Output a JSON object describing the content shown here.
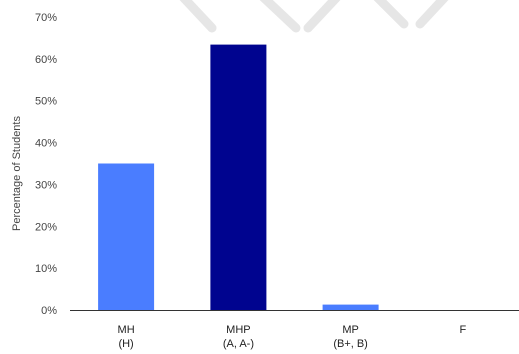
{
  "chart_data": {
    "type": "bar",
    "title": "",
    "xlabel": "",
    "ylabel": "Percentage of Students",
    "ylim": [
      0,
      70
    ],
    "yticks": [
      0,
      10,
      20,
      30,
      40,
      50,
      60,
      70
    ],
    "ytick_labels": [
      "0%",
      "10%",
      "20%",
      "30%",
      "40%",
      "50%",
      "60%",
      "70%"
    ],
    "categories": [
      [
        "MH",
        "(H)"
      ],
      [
        "MHP",
        "(A, A-)"
      ],
      [
        "MP",
        "(B+, B)"
      ],
      [
        "F",
        ""
      ]
    ],
    "values": [
      35,
      63.4,
      1.3,
      0
    ],
    "bar_colors": [
      "#4a7dff",
      "#00048f",
      "#4a7dff",
      "#4a7dff"
    ],
    "grid": false,
    "legend": "none"
  },
  "colors": {
    "axis": "#333333",
    "background": "#ffffff"
  }
}
